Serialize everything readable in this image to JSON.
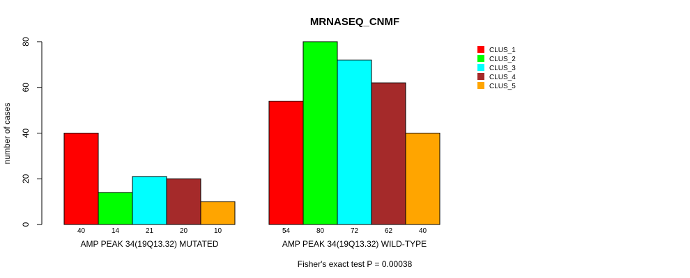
{
  "chart_data": {
    "type": "bar",
    "title": "MRNASEQ_CNMF",
    "ylabel": "number of cases",
    "ylim": [
      0,
      80
    ],
    "yticks": [
      0,
      20,
      40,
      60,
      80
    ],
    "groups": [
      "AMP PEAK 34(19Q13.32) MUTATED",
      "AMP PEAK 34(19Q13.32) WILD-TYPE"
    ],
    "series": [
      {
        "name": "CLUS_1",
        "color": "#ff0000",
        "values": [
          40,
          54
        ]
      },
      {
        "name": "CLUS_2",
        "color": "#00ff00",
        "values": [
          14,
          80
        ]
      },
      {
        "name": "CLUS_3",
        "color": "#00ffff",
        "values": [
          21,
          72
        ]
      },
      {
        "name": "CLUS_4",
        "color": "#a52a2a",
        "values": [
          20,
          62
        ]
      },
      {
        "name": "CLUS_5",
        "color": "#ffa500",
        "values": [
          10,
          40
        ]
      }
    ],
    "legend_position": "top-right",
    "footnote": "Fisher's exact test P = 0.00038"
  }
}
